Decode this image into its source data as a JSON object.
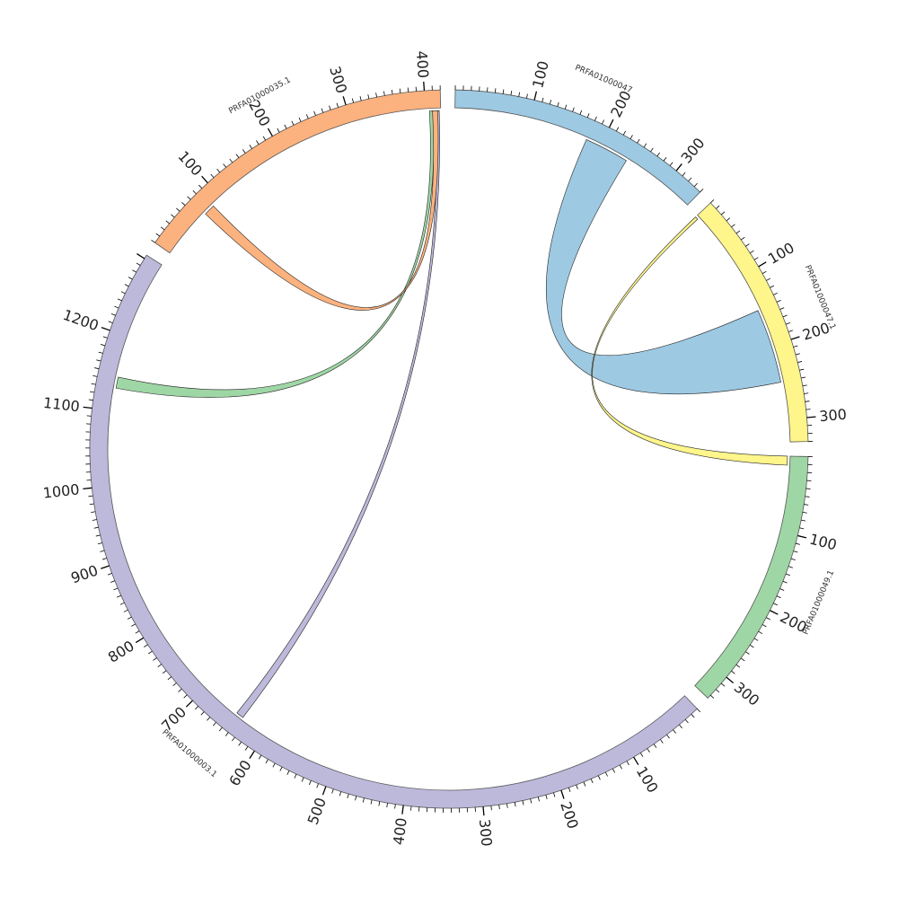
{
  "chart_data": {
    "type": "chord",
    "tick_interval": 100,
    "segments": [
      {
        "id": "PRFA01000047",
        "name": "PRFA01000047",
        "length": 340,
        "color": "#9dc9e2",
        "ticks": [
          "100",
          "200",
          "300"
        ]
      },
      {
        "id": "PRFA01000047.1",
        "name": "PRFA01000047.1",
        "length": 330,
        "color": "#fef58b",
        "ticks": [
          "100",
          "200",
          "300"
        ]
      },
      {
        "id": "PRFA01000049.1",
        "name": "PRFA01000049.1",
        "length": 335,
        "color": "#9fd6a5",
        "ticks": [
          "100",
          "200",
          "300"
        ]
      },
      {
        "id": "PRFA01000003.1",
        "name": "PRFA01000003.1",
        "length": 1305,
        "color": "#bdb9db",
        "ticks": [
          "100",
          "200",
          "300",
          "400",
          "500",
          "600",
          "700",
          "800",
          "900",
          "1000",
          "1100",
          "1200"
        ]
      },
      {
        "id": "PRFA01000035.1",
        "name": "PRFA01000035.1",
        "length": 420,
        "color": "#fcb27e",
        "ticks": [
          "100",
          "200",
          "300",
          "400"
        ]
      }
    ],
    "links": [
      {
        "from": "PRFA01000047",
        "from_range": [
          180,
          240
        ],
        "to": "PRFA01000047.1",
        "to_range": [
          150,
          250
        ],
        "color": "#9dc9e2"
      },
      {
        "from": "PRFA01000047.1",
        "from_range": [
          0,
          4
        ],
        "to": "PRFA01000049.1",
        "to_range": [
          0,
          12
        ],
        "color": "#fef58b"
      },
      {
        "from": "PRFA01000035.1",
        "from_range": [
          414,
          418
        ],
        "to": "PRFA01000003.1",
        "to_range": [
          637,
          647
        ],
        "color": "#bdb9db"
      },
      {
        "from": "PRFA01000035.1",
        "from_range": [
          405,
          410
        ],
        "to": "PRFA01000003.1",
        "to_range": [
          1130,
          1145
        ],
        "color": "#9fd6a5"
      },
      {
        "from": "PRFA01000035.1",
        "from_range": [
          409,
          416
        ],
        "to": "PRFA01000035.1",
        "to_range": [
          70,
          85
        ],
        "color": "#fcb27e"
      }
    ]
  }
}
